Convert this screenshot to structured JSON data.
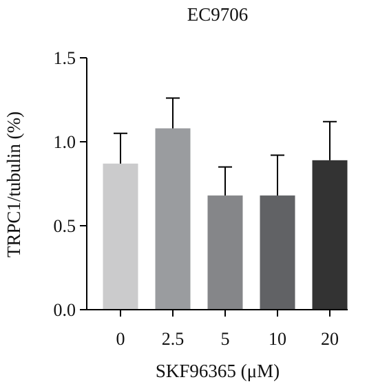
{
  "chart_data": {
    "type": "bar",
    "title": "EC9706",
    "xlabel": "SKF96365 (μM)",
    "ylabel": "TRPC1/tubulin (%)",
    "categories": [
      "0",
      "2.5",
      "5",
      "10",
      "20"
    ],
    "values": [
      0.87,
      1.08,
      0.68,
      0.68,
      0.89
    ],
    "errors": [
      0.18,
      0.18,
      0.17,
      0.24,
      0.23
    ],
    "bar_colors": [
      "#cbcbcc",
      "#9a9c9f",
      "#858689",
      "#616265",
      "#333333"
    ],
    "ylim": [
      0,
      1.5
    ],
    "yticks": [
      "0.0",
      "0.5",
      "1.0",
      "1.5"
    ],
    "grid": false,
    "legend": "none"
  }
}
